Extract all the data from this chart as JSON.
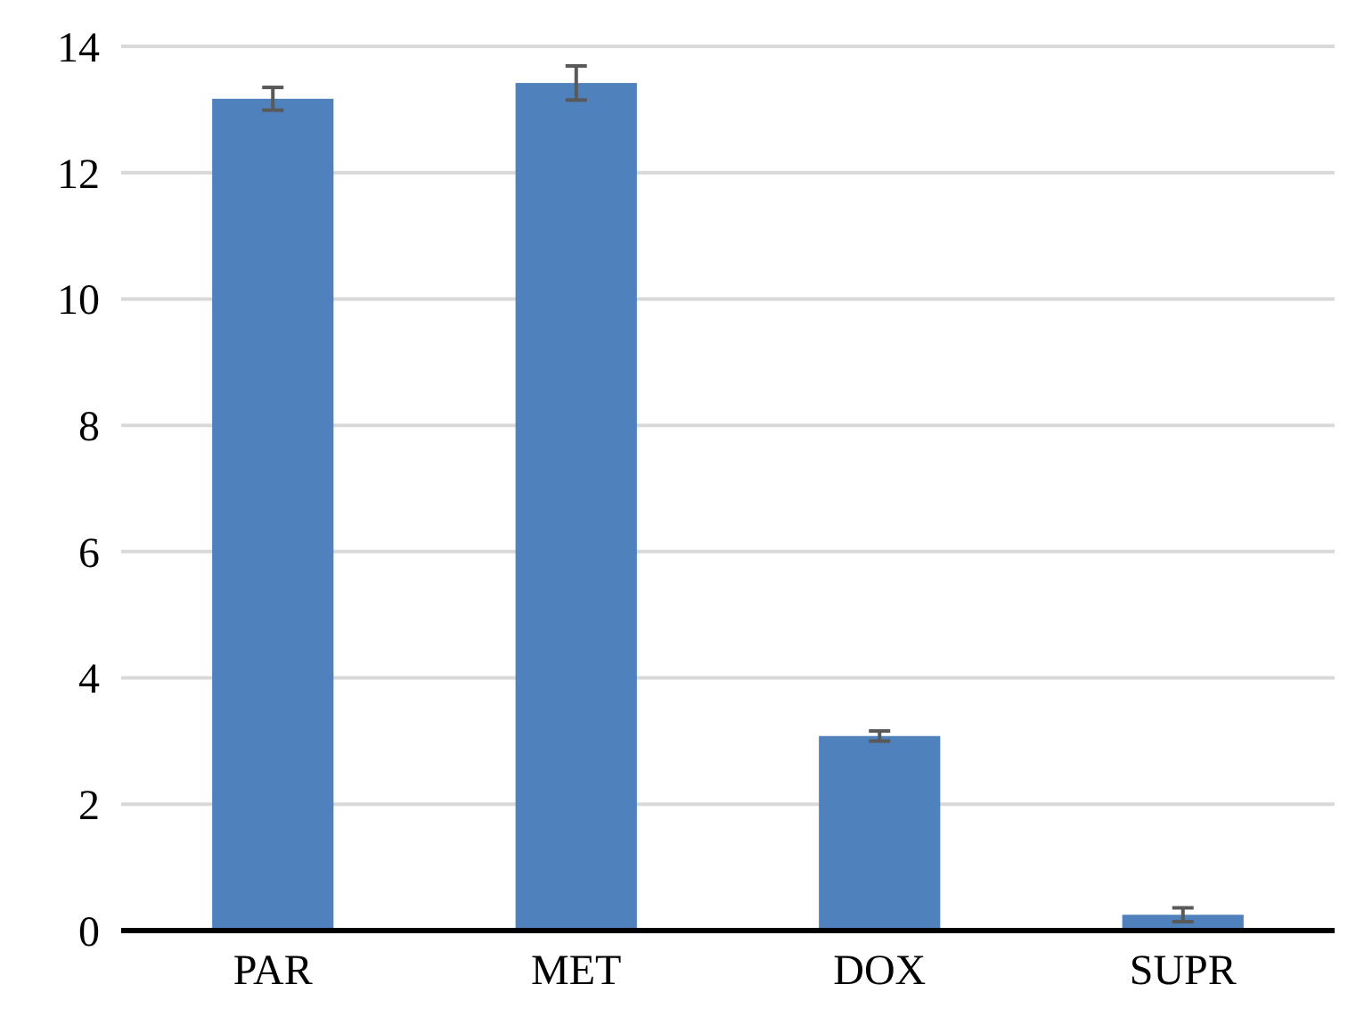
{
  "chart_data": {
    "type": "bar",
    "categories": [
      "PAR",
      "MET",
      "DOX",
      "SUPR"
    ],
    "values": [
      13.17,
      13.42,
      3.08,
      0.25
    ],
    "errors": [
      0.18,
      0.27,
      0.08,
      0.11
    ],
    "color": "#4f81bd",
    "ylim": [
      0,
      14
    ],
    "yticks": [
      0,
      2,
      4,
      6,
      8,
      10,
      12,
      14
    ],
    "grid": "y"
  }
}
